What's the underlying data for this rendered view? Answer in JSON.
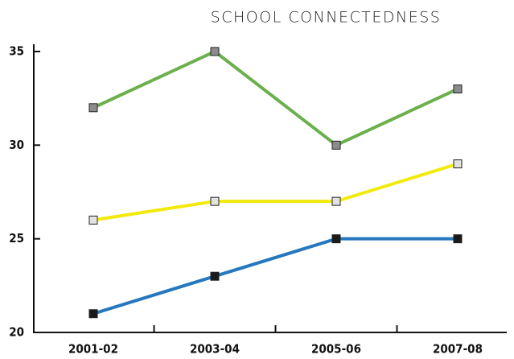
{
  "chart_data": {
    "type": "line",
    "title": "SCHOOL CONNECTEDNESS",
    "categories": [
      "2001-02",
      "2003-04",
      "2005-06",
      "2007-08"
    ],
    "series": [
      {
        "color": "#6ab04c",
        "marker_color": "#8c8c8c",
        "values": [
          32,
          35,
          30,
          33
        ]
      },
      {
        "color": "#f2ea0c",
        "marker_color": "#e2e2e2",
        "values": [
          26,
          27,
          27,
          29
        ]
      },
      {
        "color": "#2577be",
        "marker_color": "#1a1a1a",
        "values": [
          21,
          23,
          25,
          25
        ]
      }
    ],
    "ylim": [
      20,
      35
    ],
    "yticks": [
      20,
      25,
      30,
      35
    ],
    "grid": false
  }
}
